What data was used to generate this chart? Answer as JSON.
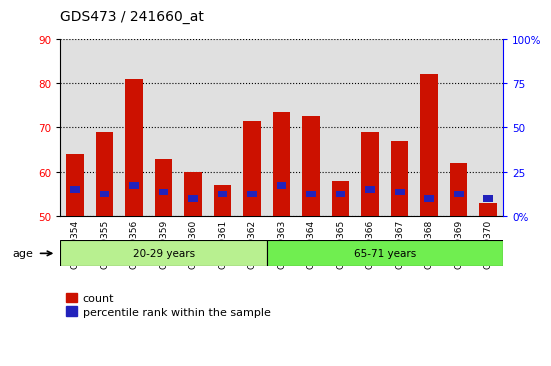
{
  "title": "GDS473 / 241660_at",
  "samples": [
    "GSM10354",
    "GSM10355",
    "GSM10356",
    "GSM10359",
    "GSM10360",
    "GSM10361",
    "GSM10362",
    "GSM10363",
    "GSM10364",
    "GSM10365",
    "GSM10366",
    "GSM10367",
    "GSM10368",
    "GSM10369",
    "GSM10370"
  ],
  "count_values": [
    64,
    69,
    81,
    63,
    60,
    57,
    71.5,
    73.5,
    72.5,
    58,
    69,
    67,
    82,
    62,
    53
  ],
  "percentile_values": [
    56,
    55,
    57,
    55.5,
    54,
    55,
    55,
    57,
    55,
    55,
    56,
    55.5,
    54,
    55,
    54
  ],
  "ymin": 50,
  "ymax": 90,
  "yticks": [
    50,
    60,
    70,
    80,
    90
  ],
  "right_ytick_pct": [
    0,
    25,
    50,
    75,
    100
  ],
  "group1_label": "20-29 years",
  "group2_label": "65-71 years",
  "group1_count": 7,
  "group2_count": 8,
  "group1_color": "#b8f090",
  "group2_color": "#70ee50",
  "bar_color": "#cc1100",
  "percentile_color": "#2222bb",
  "bar_width": 0.6,
  "background_color": "#ffffff",
  "plot_bg_color": "#e0e0e0",
  "legend_count": "count",
  "legend_percentile": "percentile rank within the sample",
  "title_fontsize": 10,
  "tick_fontsize": 7.5,
  "label_fontsize": 8
}
